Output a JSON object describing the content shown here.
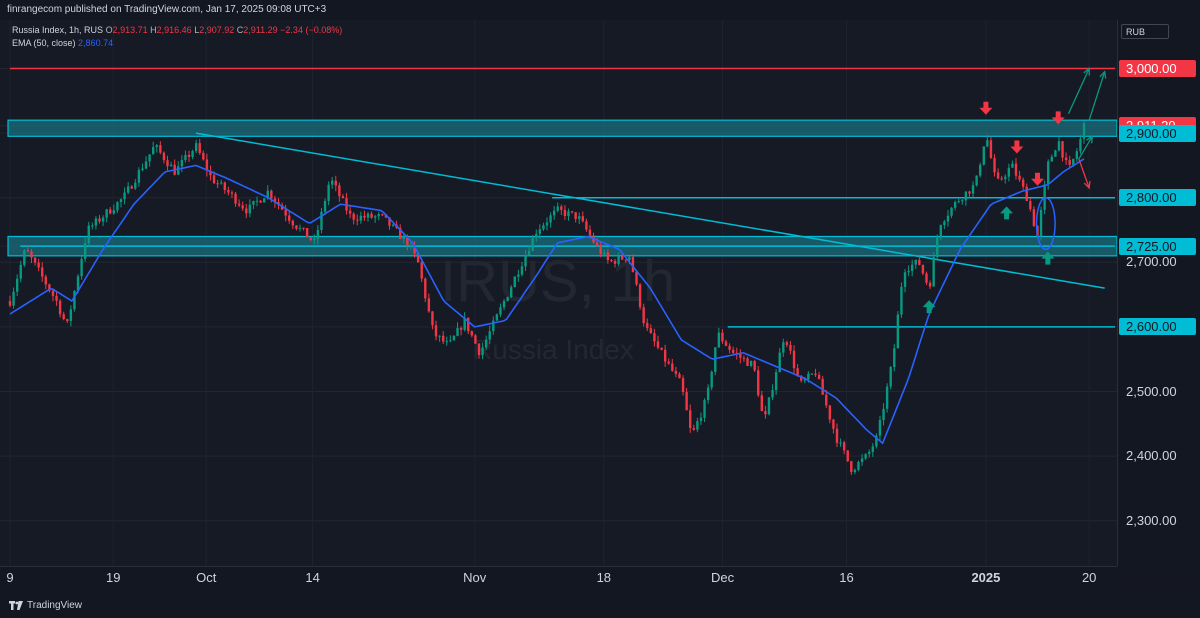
{
  "header": {
    "publisher": "finrangecom published on TradingView.com, Jan 17, 2025 09:08 UTC+3"
  },
  "legend": {
    "symbol": "Russia Index, 1h, RUS",
    "o_label": "O",
    "o_value": "2,913.71",
    "h_label": "H",
    "h_value": "2,916.46",
    "l_label": "L",
    "l_value": "2,907.92",
    "c_label": "C",
    "c_value": "2,911.29",
    "change": "−2.34 (−0.08%)",
    "ema_label": "EMA (50, close)",
    "ema_value": "2,860.74"
  },
  "currency": "RUB",
  "watermark": {
    "ticker": "IRUS, 1h",
    "name": "Russia Index"
  },
  "footer": {
    "brand": "TradingView"
  },
  "colors": {
    "up": "#089981",
    "down": "#f23645",
    "ema": "#2962ff",
    "level": "#00bcd4",
    "zone": "#1a6f7e",
    "resistance": "#f23645"
  },
  "chart_data": {
    "type": "candlestick",
    "ylim": [
      2230,
      3075
    ],
    "y_ticks": [
      {
        "value": 2300,
        "label": "2,300.00"
      },
      {
        "value": 2400,
        "label": "2,400.00"
      },
      {
        "value": 2500,
        "label": "2,500.00"
      },
      {
        "value": 2700,
        "label": "2,700.00"
      }
    ],
    "x_ticks": [
      {
        "label": "9",
        "t": 0.0
      },
      {
        "label": "19",
        "t": 10.0
      },
      {
        "label": "Oct",
        "t": 19.0
      },
      {
        "label": "14",
        "t": 29.3
      },
      {
        "label": "Nov",
        "t": 45.0
      },
      {
        "label": "18",
        "t": 57.5
      },
      {
        "label": "Dec",
        "t": 69.0
      },
      {
        "label": "16",
        "t": 81.0
      },
      {
        "label": "2025",
        "t": 94.5,
        "bold": true
      },
      {
        "label": "20",
        "t": 104.5
      }
    ],
    "price_tags": [
      {
        "value": 3000,
        "label": "3,000.00",
        "bg": "#f23645",
        "fg": "#ffffff"
      },
      {
        "value": 2911.29,
        "label": "2,911.29",
        "bg": "#f23645",
        "fg": "#ffffff"
      },
      {
        "value": 2900,
        "label": "2,900.00",
        "bg": "#00bcd4",
        "fg": "#131722"
      },
      {
        "value": 2800,
        "label": "2,800.00",
        "bg": "#00bcd4",
        "fg": "#131722"
      },
      {
        "value": 2725,
        "label": "2,725.00",
        "bg": "#00bcd4",
        "fg": "#131722"
      },
      {
        "value": 2600,
        "label": "2,600.00",
        "bg": "#00bcd4",
        "fg": "#131722"
      }
    ],
    "series_keypoints": [
      [
        0,
        2640
      ],
      [
        1.5,
        2720
      ],
      [
        4.5,
        2640
      ],
      [
        5.5,
        2600
      ],
      [
        7.5,
        2750
      ],
      [
        11,
        2800
      ],
      [
        14,
        2880
      ],
      [
        16,
        2840
      ],
      [
        18,
        2880
      ],
      [
        19.5,
        2830
      ],
      [
        21,
        2810
      ],
      [
        23,
        2780
      ],
      [
        25,
        2810
      ],
      [
        27.5,
        2760
      ],
      [
        29.5,
        2730
      ],
      [
        31,
        2830
      ],
      [
        33,
        2770
      ],
      [
        36,
        2770
      ],
      [
        38.5,
        2730
      ],
      [
        39.5,
        2700
      ],
      [
        41,
        2590
      ],
      [
        42.5,
        2570
      ],
      [
        44,
        2610
      ],
      [
        45.5,
        2560
      ],
      [
        47,
        2610
      ],
      [
        49,
        2680
      ],
      [
        51,
        2750
      ],
      [
        53,
        2780
      ],
      [
        55,
        2770
      ],
      [
        57,
        2720
      ],
      [
        58,
        2700
      ],
      [
        60,
        2710
      ],
      [
        61.5,
        2600
      ],
      [
        63,
        2560
      ],
      [
        65,
        2510
      ],
      [
        66,
        2430
      ],
      [
        67.5,
        2490
      ],
      [
        68.5,
        2590
      ],
      [
        70,
        2560
      ],
      [
        72,
        2540
      ],
      [
        73,
        2450
      ],
      [
        75,
        2590
      ],
      [
        76.5,
        2510
      ],
      [
        78,
        2530
      ],
      [
        79,
        2480
      ],
      [
        80,
        2430
      ],
      [
        81.5,
        2380
      ],
      [
        83,
        2400
      ],
      [
        84,
        2430
      ],
      [
        85.5,
        2550
      ],
      [
        86.5,
        2690
      ],
      [
        88,
        2700
      ],
      [
        89,
        2660
      ],
      [
        90,
        2760
      ],
      [
        92,
        2800
      ],
      [
        93.5,
        2820
      ],
      [
        94.5,
        2900
      ],
      [
        95.5,
        2820
      ],
      [
        97,
        2850
      ],
      [
        98.5,
        2800
      ],
      [
        99.5,
        2740
      ],
      [
        100.5,
        2850
      ],
      [
        101.5,
        2890
      ],
      [
        102.5,
        2840
      ],
      [
        103.5,
        2880
      ],
      [
        104,
        2912
      ]
    ],
    "ema_keypoints": [
      [
        0,
        2620
      ],
      [
        4,
        2660
      ],
      [
        6,
        2640
      ],
      [
        9,
        2720
      ],
      [
        12,
        2790
      ],
      [
        15,
        2840
      ],
      [
        18,
        2850
      ],
      [
        21,
        2830
      ],
      [
        25,
        2800
      ],
      [
        29,
        2760
      ],
      [
        32,
        2790
      ],
      [
        36,
        2780
      ],
      [
        39,
        2730
      ],
      [
        42,
        2640
      ],
      [
        45,
        2600
      ],
      [
        48,
        2610
      ],
      [
        51,
        2680
      ],
      [
        53,
        2730
      ],
      [
        56,
        2740
      ],
      [
        59,
        2720
      ],
      [
        62,
        2660
      ],
      [
        65,
        2580
      ],
      [
        68,
        2550
      ],
      [
        71,
        2560
      ],
      [
        74,
        2540
      ],
      [
        77,
        2520
      ],
      [
        80,
        2490
      ],
      [
        83,
        2440
      ],
      [
        84.5,
        2420
      ],
      [
        87,
        2520
      ],
      [
        89,
        2620
      ],
      [
        92,
        2720
      ],
      [
        95,
        2790
      ],
      [
        98,
        2810
      ],
      [
        100.5,
        2820
      ],
      [
        102,
        2840
      ],
      [
        104,
        2860
      ]
    ],
    "support_zones": [
      {
        "from": 2895,
        "to": 2920
      },
      {
        "from": 2710,
        "to": 2740
      }
    ],
    "level_lines": [
      {
        "value": 3000,
        "from_t": 0,
        "to_t": 107,
        "color": "#f23645"
      },
      {
        "value": 2800,
        "from_t": 52.5,
        "to_t": 107,
        "color": "#00bcd4"
      },
      {
        "value": 2600,
        "from_t": 69.5,
        "to_t": 107,
        "color": "#00bcd4"
      },
      {
        "value": 2725,
        "from_t": 1,
        "to_t": 107,
        "color": "#00bcd4"
      }
    ],
    "trendline": {
      "t1": 18,
      "v1": 2900,
      "t2": 106,
      "v2": 2660
    },
    "arrows_down": [
      [
        94.5,
        2930
      ],
      [
        97.5,
        2870
      ],
      [
        99.5,
        2820
      ],
      [
        101.5,
        2915
      ]
    ],
    "arrows_up": [
      [
        89,
        2640
      ],
      [
        96.5,
        2785
      ],
      [
        100.5,
        2715
      ]
    ],
    "projections": [
      {
        "from": [
          102.5,
          2930
        ],
        "to": [
          104.5,
          3000
        ],
        "color": "#089981"
      },
      {
        "from": [
          104.5,
          2920
        ],
        "to": [
          106,
          2995
        ],
        "color": "#089981"
      },
      {
        "from": [
          103.5,
          2860
        ],
        "to": [
          104.8,
          2895
        ],
        "color": "#089981"
      },
      {
        "from": [
          103.5,
          2860
        ],
        "to": [
          104.5,
          2815
        ],
        "color": "#f23645"
      }
    ],
    "highlight_ellipse": {
      "t": 100.3,
      "value": 2760,
      "rx_t": 0.9,
      "ry_v": 40
    }
  }
}
